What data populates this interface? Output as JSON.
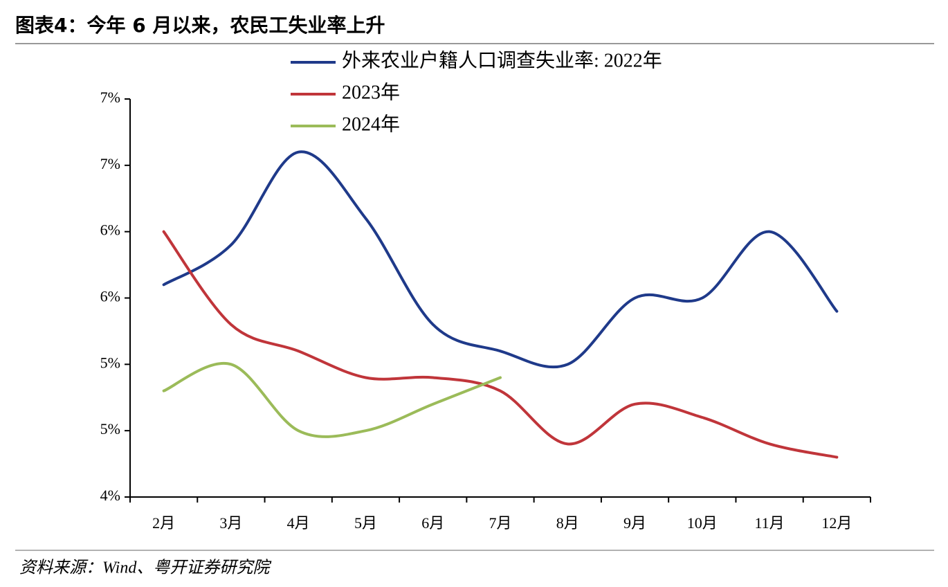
{
  "chart_data": {
    "type": "line",
    "title": "图表4：今年 6 月以来，农民工失业率上升",
    "source": "资料来源：Wind、粤开证券研究院",
    "categories": [
      "2月",
      "3月",
      "4月",
      "5月",
      "6月",
      "7月",
      "8月",
      "9月",
      "10月",
      "11月",
      "12月"
    ],
    "series": [
      {
        "name": "外来农业户籍人口调查失业率: 2022年",
        "color": "#1f3a8a",
        "values": [
          5.6,
          5.9,
          6.6,
          6.1,
          5.3,
          5.1,
          5.0,
          5.5,
          5.5,
          6.0,
          5.4
        ]
      },
      {
        "name": "2023年",
        "color": "#c0353a",
        "values": [
          6.0,
          5.3,
          5.1,
          4.9,
          4.9,
          4.8,
          4.4,
          4.7,
          4.6,
          4.4,
          4.3
        ]
      },
      {
        "name": "2024年",
        "color": "#9bbb59",
        "values": [
          4.8,
          5.0,
          4.5,
          4.5,
          4.7,
          4.9,
          null,
          null,
          null,
          null,
          null
        ]
      }
    ],
    "ylim": [
      4,
      7
    ],
    "yticks": [
      {
        "value": 4,
        "label": "4%"
      },
      {
        "value": 4.5,
        "label": "5%"
      },
      {
        "value": 5,
        "label": "5%"
      },
      {
        "value": 5.5,
        "label": "6%"
      },
      {
        "value": 6,
        "label": "6%"
      },
      {
        "value": 6.5,
        "label": "7%"
      },
      {
        "value": 7,
        "label": "7%"
      }
    ],
    "legend": "top"
  }
}
